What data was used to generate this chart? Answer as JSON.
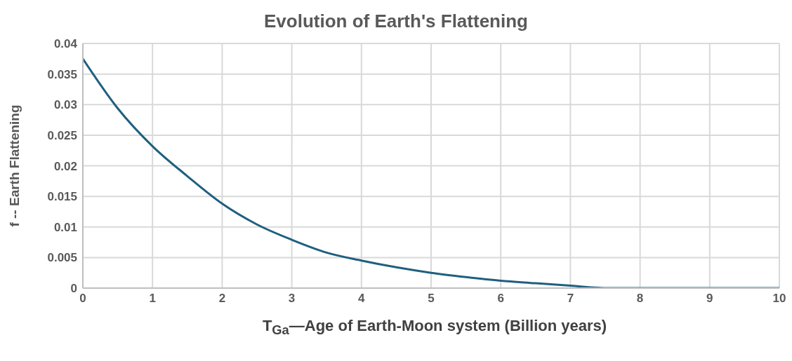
{
  "chart_data": {
    "type": "line",
    "title": "Evolution of Earth's Flattening",
    "xlabel": "T$_{Ga}$—Age of Earth-Moon system (Billion years)",
    "ylabel": "f -- Earth Flattening",
    "x": [
      0,
      0.5,
      1,
      1.5,
      2,
      2.5,
      3,
      3.5,
      4,
      4.5,
      5,
      5.5,
      6,
      6.5,
      7,
      7.55,
      8,
      9,
      10
    ],
    "series": [
      {
        "color": "#1f5f7f",
        "values": [
          0.0375,
          0.0294,
          0.0232,
          0.0183,
          0.0138,
          0.0104,
          0.0079,
          0.0058,
          0.0045,
          0.0034,
          0.0025,
          0.0018,
          0.0012,
          0.0008,
          0.0004,
          0,
          0,
          0,
          0
        ]
      }
    ],
    "xlim": [
      0,
      10
    ],
    "xticks": [
      0,
      1,
      2,
      3,
      4,
      5,
      6,
      7,
      8,
      9,
      10
    ],
    "ylim": [
      0,
      0.04
    ],
    "yticks": [
      0,
      0.005,
      0.01,
      0.015,
      0.02,
      0.025,
      0.03,
      0.035,
      0.04
    ],
    "grid": true,
    "marker": "none",
    "line_style": "solid",
    "legend": false
  }
}
